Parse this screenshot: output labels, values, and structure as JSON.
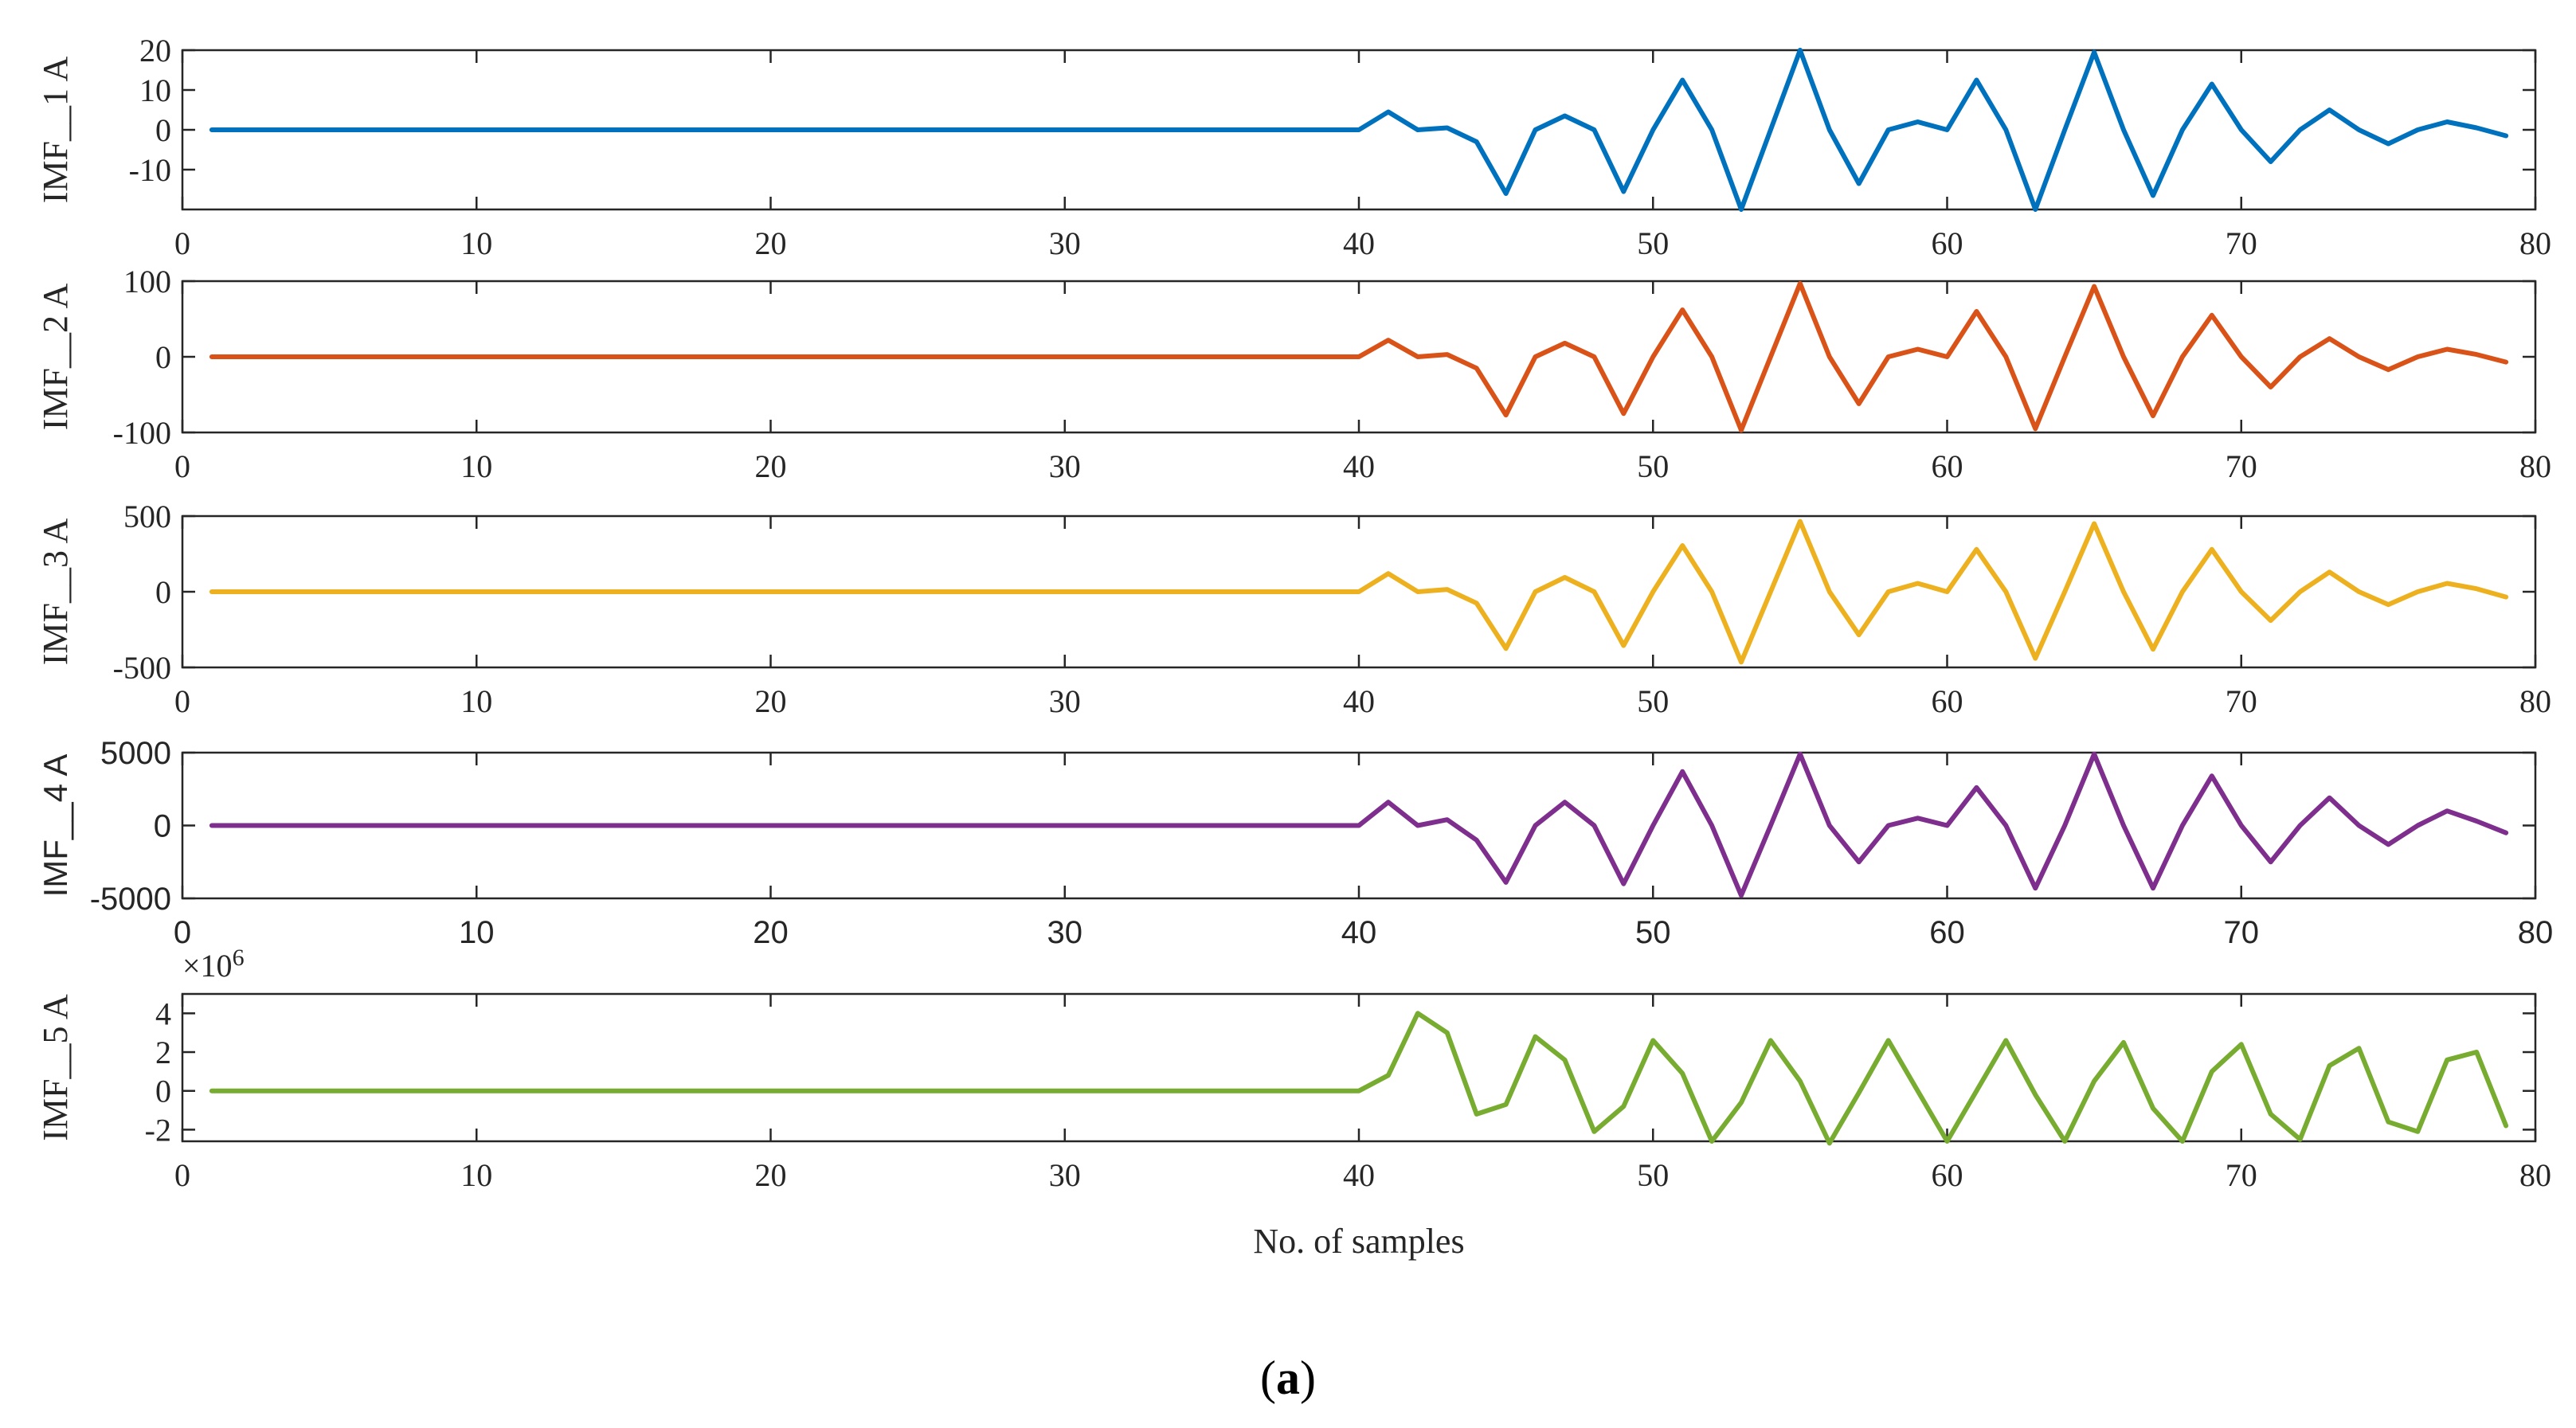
{
  "chart_data": [
    {
      "type": "line",
      "ylabel": "IMF__1 A",
      "color": "#0072BD",
      "xlim": [
        0,
        80
      ],
      "ylim": [
        -20,
        20
      ],
      "xticks": [
        0,
        10,
        20,
        30,
        40,
        50,
        60,
        70,
        80
      ],
      "yticks": [
        -10,
        0,
        10,
        20
      ],
      "x": [
        1,
        2,
        3,
        4,
        5,
        6,
        7,
        8,
        9,
        10,
        11,
        12,
        13,
        14,
        15,
        16,
        17,
        18,
        19,
        20,
        21,
        22,
        23,
        24,
        25,
        26,
        27,
        28,
        29,
        30,
        31,
        32,
        33,
        34,
        35,
        36,
        37,
        38,
        39,
        40,
        41,
        42,
        43,
        44,
        45,
        46,
        47,
        48,
        49,
        50,
        51,
        52,
        53,
        54,
        55,
        56,
        57,
        58,
        59,
        60,
        61,
        62,
        63,
        64,
        65,
        66,
        67,
        68,
        69,
        70,
        71,
        72,
        73,
        74,
        75,
        76,
        77,
        78,
        79
      ],
      "values": [
        0,
        0,
        0,
        0,
        0,
        0,
        0,
        0,
        0,
        0,
        0,
        0,
        0,
        0,
        0,
        0,
        0,
        0,
        0,
        0,
        0,
        0,
        0,
        0,
        0,
        0,
        0,
        0,
        0,
        0,
        0,
        0,
        0,
        0,
        0,
        0,
        0,
        0,
        0,
        0,
        4.5,
        0,
        0.5,
        -3,
        -16,
        0,
        3.5,
        0,
        -15.5,
        0,
        12.5,
        0,
        -20,
        0,
        20,
        0,
        -13.5,
        0,
        2,
        0,
        12.5,
        0,
        -20,
        0,
        19.5,
        0,
        -16.5,
        0,
        11.5,
        0,
        -8,
        0,
        5,
        0,
        -3.5,
        0,
        2,
        0.5,
        -1.5
      ]
    },
    {
      "type": "line",
      "ylabel": "IMF__2 A",
      "color": "#D95319",
      "xlim": [
        0,
        80
      ],
      "ylim": [
        -100,
        100
      ],
      "xticks": [
        0,
        10,
        20,
        30,
        40,
        50,
        60,
        70,
        80
      ],
      "yticks": [
        -100,
        0,
        100
      ],
      "x": [
        1,
        2,
        3,
        4,
        5,
        6,
        7,
        8,
        9,
        10,
        11,
        12,
        13,
        14,
        15,
        16,
        17,
        18,
        19,
        20,
        21,
        22,
        23,
        24,
        25,
        26,
        27,
        28,
        29,
        30,
        31,
        32,
        33,
        34,
        35,
        36,
        37,
        38,
        39,
        40,
        41,
        42,
        43,
        44,
        45,
        46,
        47,
        48,
        49,
        50,
        51,
        52,
        53,
        54,
        55,
        56,
        57,
        58,
        59,
        60,
        61,
        62,
        63,
        64,
        65,
        66,
        67,
        68,
        69,
        70,
        71,
        72,
        73,
        74,
        75,
        76,
        77,
        78,
        79
      ],
      "values": [
        0,
        0,
        0,
        0,
        0,
        0,
        0,
        0,
        0,
        0,
        0,
        0,
        0,
        0,
        0,
        0,
        0,
        0,
        0,
        0,
        0,
        0,
        0,
        0,
        0,
        0,
        0,
        0,
        0,
        0,
        0,
        0,
        0,
        0,
        0,
        0,
        0,
        0,
        0,
        0,
        22,
        0,
        3,
        -15,
        -77,
        0,
        18,
        0,
        -75,
        0,
        62,
        0,
        -97,
        0,
        97,
        0,
        -62,
        0,
        10,
        0,
        60,
        0,
        -95,
        0,
        93,
        0,
        -78,
        0,
        55,
        0,
        -40,
        0,
        24,
        0,
        -17,
        0,
        10,
        3,
        -7
      ]
    },
    {
      "type": "line",
      "ylabel": "IMF__3 A",
      "color": "#EDB120",
      "xlim": [
        0,
        80
      ],
      "ylim": [
        -500,
        500
      ],
      "xticks": [
        0,
        10,
        20,
        30,
        40,
        50,
        60,
        70,
        80
      ],
      "yticks": [
        -500,
        0,
        500
      ],
      "x": [
        1,
        2,
        3,
        4,
        5,
        6,
        7,
        8,
        9,
        10,
        11,
        12,
        13,
        14,
        15,
        16,
        17,
        18,
        19,
        20,
        21,
        22,
        23,
        24,
        25,
        26,
        27,
        28,
        29,
        30,
        31,
        32,
        33,
        34,
        35,
        36,
        37,
        38,
        39,
        40,
        41,
        42,
        43,
        44,
        45,
        46,
        47,
        48,
        49,
        50,
        51,
        52,
        53,
        54,
        55,
        56,
        57,
        58,
        59,
        60,
        61,
        62,
        63,
        64,
        65,
        66,
        67,
        68,
        69,
        70,
        71,
        72,
        73,
        74,
        75,
        76,
        77,
        78,
        79
      ],
      "values": [
        0,
        0,
        0,
        0,
        0,
        0,
        0,
        0,
        0,
        0,
        0,
        0,
        0,
        0,
        0,
        0,
        0,
        0,
        0,
        0,
        0,
        0,
        0,
        0,
        0,
        0,
        0,
        0,
        0,
        0,
        0,
        0,
        0,
        0,
        0,
        0,
        0,
        0,
        0,
        0,
        120,
        0,
        15,
        -75,
        -375,
        0,
        95,
        0,
        -355,
        0,
        305,
        0,
        -465,
        0,
        465,
        0,
        -285,
        0,
        55,
        0,
        280,
        0,
        -440,
        0,
        450,
        0,
        -380,
        0,
        280,
        0,
        -190,
        0,
        130,
        0,
        -85,
        0,
        55,
        20,
        -35
      ]
    },
    {
      "type": "line",
      "ylabel": "IMF__4 A",
      "color": "#7E2F8E",
      "xlim": [
        0,
        80
      ],
      "ylim": [
        -5000,
        5000
      ],
      "xticks": [
        0,
        10,
        20,
        30,
        40,
        50,
        60,
        70,
        80
      ],
      "yticks": [
        -5000,
        0,
        5000
      ],
      "x": [
        1,
        2,
        3,
        4,
        5,
        6,
        7,
        8,
        9,
        10,
        11,
        12,
        13,
        14,
        15,
        16,
        17,
        18,
        19,
        20,
        21,
        22,
        23,
        24,
        25,
        26,
        27,
        28,
        29,
        30,
        31,
        32,
        33,
        34,
        35,
        36,
        37,
        38,
        39,
        40,
        41,
        42,
        43,
        44,
        45,
        46,
        47,
        48,
        49,
        50,
        51,
        52,
        53,
        54,
        55,
        56,
        57,
        58,
        59,
        60,
        61,
        62,
        63,
        64,
        65,
        66,
        67,
        68,
        69,
        70,
        71,
        72,
        73,
        74,
        75,
        76,
        77,
        78,
        79
      ],
      "values": [
        0,
        0,
        0,
        0,
        0,
        0,
        0,
        0,
        0,
        0,
        0,
        0,
        0,
        0,
        0,
        0,
        0,
        0,
        0,
        0,
        0,
        0,
        0,
        0,
        0,
        0,
        0,
        0,
        0,
        0,
        0,
        0,
        0,
        0,
        0,
        0,
        0,
        0,
        0,
        0,
        1600,
        0,
        400,
        -1000,
        -3900,
        0,
        1600,
        0,
        -4000,
        0,
        3700,
        0,
        -4800,
        0,
        4900,
        0,
        -2500,
        0,
        500,
        0,
        2600,
        0,
        -4300,
        0,
        4900,
        0,
        -4300,
        0,
        3400,
        0,
        -2500,
        0,
        1900,
        0,
        -1300,
        0,
        1000,
        300,
        -500
      ]
    },
    {
      "type": "line",
      "ylabel": "IMF__5 A",
      "xlabel": "No. of samples",
      "exponent_label": "×10^6",
      "color": "#77AC30",
      "xlim": [
        0,
        80
      ],
      "ylim": [
        -2.6,
        5
      ],
      "xticks": [
        0,
        10,
        20,
        30,
        40,
        50,
        60,
        70,
        80
      ],
      "yticks": [
        -2,
        0,
        2,
        4
      ],
      "x": [
        1,
        2,
        3,
        4,
        5,
        6,
        7,
        8,
        9,
        10,
        11,
        12,
        13,
        14,
        15,
        16,
        17,
        18,
        19,
        20,
        21,
        22,
        23,
        24,
        25,
        26,
        27,
        28,
        29,
        30,
        31,
        32,
        33,
        34,
        35,
        36,
        37,
        38,
        39,
        40,
        41,
        42,
        43,
        44,
        45,
        46,
        47,
        48,
        49,
        50,
        51,
        52,
        53,
        54,
        55,
        56,
        57,
        58,
        59,
        60,
        61,
        62,
        63,
        64,
        65,
        66,
        67,
        68,
        69,
        70,
        71,
        72,
        73,
        74,
        75,
        76,
        77,
        78,
        79
      ],
      "values": [
        0,
        0,
        0,
        0,
        0,
        0,
        0,
        0,
        0,
        0,
        0,
        0,
        0,
        0,
        0,
        0,
        0,
        0,
        0,
        0,
        0,
        0,
        0,
        0,
        0,
        0,
        0,
        0,
        0,
        0,
        0,
        0,
        0,
        0,
        0,
        0,
        0,
        0,
        0,
        0,
        0.8,
        4,
        3,
        -1.2,
        -0.7,
        2.8,
        1.6,
        -2.1,
        -0.8,
        2.6,
        0.9,
        -2.6,
        -0.6,
        2.6,
        0.5,
        -2.7,
        -0.1,
        2.6,
        0,
        -2.6,
        0,
        2.6,
        -0.2,
        -2.6,
        0.5,
        2.5,
        -0.9,
        -2.6,
        1,
        2.4,
        -1.2,
        -2.5,
        1.3,
        2.2,
        -1.6,
        -2.1,
        1.6,
        2,
        -1.8
      ]
    }
  ],
  "caption": {
    "open": "(",
    "letter": "a",
    "close": ")"
  }
}
